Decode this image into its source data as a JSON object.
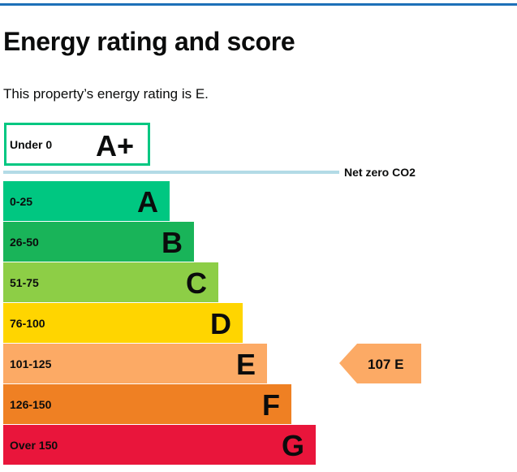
{
  "page": {
    "title": "Energy rating and score",
    "intro": "This property’s energy rating is E."
  },
  "chart_data": {
    "type": "bar",
    "title": "",
    "top_band": {
      "range": "Under 0",
      "letter": "A+",
      "outline_color": "#00c781"
    },
    "net_zero_label": "Net zero CO2",
    "net_zero_line_color": "#b3dbe6",
    "categories": [
      "A",
      "B",
      "C",
      "D",
      "E",
      "F",
      "G"
    ],
    "bands": [
      {
        "letter": "A",
        "range": "0-25",
        "color": "#00c781",
        "text_color": "#0b0c0c"
      },
      {
        "letter": "B",
        "range": "26-50",
        "color": "#19b459",
        "text_color": "#0b0c0c"
      },
      {
        "letter": "C",
        "range": "51-75",
        "color": "#8dce46",
        "text_color": "#0b0c0c"
      },
      {
        "letter": "D",
        "range": "76-100",
        "color": "#ffd500",
        "text_color": "#0b0c0c"
      },
      {
        "letter": "E",
        "range": "101-125",
        "color": "#fcaa65",
        "text_color": "#0b0c0c"
      },
      {
        "letter": "F",
        "range": "126-150",
        "color": "#ef8023",
        "text_color": "#0b0c0c"
      },
      {
        "letter": "G",
        "range": "Over 150",
        "color": "#e9153b",
        "text_color": "#0b0c0c"
      }
    ],
    "current": {
      "score": "107",
      "letter": "E",
      "band_index": 4,
      "color": "#fcaa65"
    }
  }
}
